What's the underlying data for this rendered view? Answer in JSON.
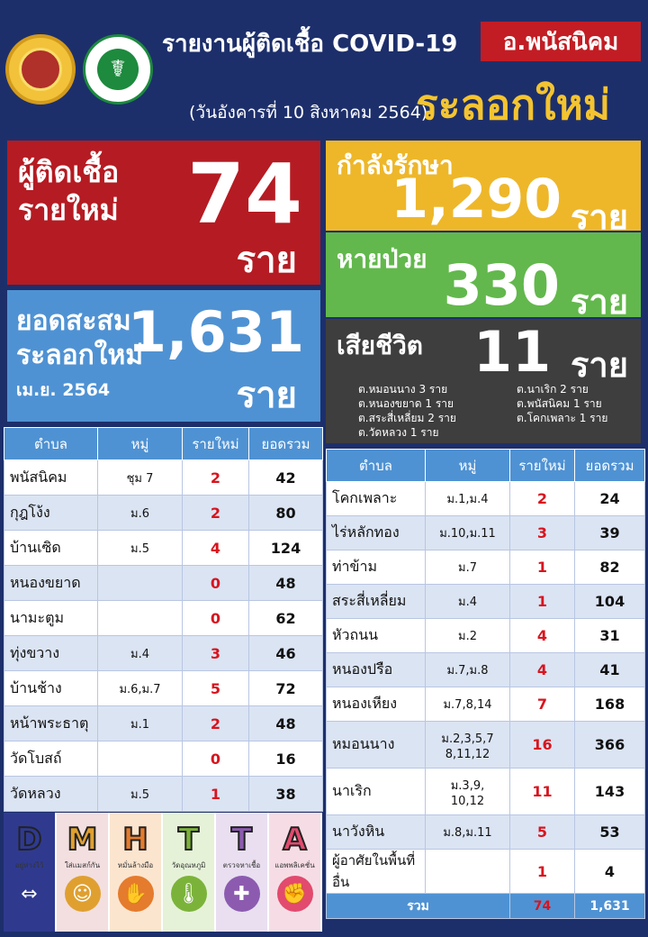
{
  "header": {
    "title": "รายงานผู้ติดเชื้อ COVID-19",
    "district": "อ.พนัสนิคม",
    "date": "(วันอังคารที่ 10 สิงหาคม 2564)",
    "place": "ระลอกใหม่"
  },
  "stats": {
    "new_label": "ผู้ติดเชื้อ รายใหม่",
    "new_value": "74",
    "new_unit": "ราย",
    "cum_label": "ยอดสะสม ระลอกใหม่",
    "cum_sub": "เม.ย. 2564",
    "cum_value": "1,631",
    "cum_unit": "ราย",
    "treat_label": "กำลังรักษา",
    "treat_value": "1,290",
    "treat_unit": "ราย",
    "recover_label": "หายป่วย",
    "recover_value": "330",
    "recover_unit": "ราย",
    "death_label": "เสียชีวิต",
    "death_value": "11",
    "death_unit": "ราย",
    "death_left": [
      "ต.หมอนนาง 3 ราย",
      "ต.หนองขยาด 1 ราย",
      "ต.สระสี่เหลี่ยม 2 ราย",
      "ต.วัดหลวง 1 ราย"
    ],
    "death_right": [
      "ต.นาเริก 2 ราย",
      "ต.พนัสนิคม 1 ราย",
      "ต.โคกเพลาะ 1 ราย"
    ]
  },
  "table_headers": [
    "ตำบล",
    "หมู่",
    "รายใหม่",
    "ยอดรวม"
  ],
  "table_left": [
    {
      "name": "พนัสนิคม",
      "moo": "ชุม 7",
      "new": "2",
      "total": "42"
    },
    {
      "name": "กุฎโง้ง",
      "moo": "ม.6",
      "new": "2",
      "total": "80"
    },
    {
      "name": "บ้านเซิด",
      "moo": "ม.5",
      "new": "4",
      "total": "124"
    },
    {
      "name": "หนองขยาด",
      "moo": "",
      "new": "0",
      "total": "48"
    },
    {
      "name": "นามะตูม",
      "moo": "",
      "new": "0",
      "total": "62"
    },
    {
      "name": "ทุ่งขวาง",
      "moo": "ม.4",
      "new": "3",
      "total": "46"
    },
    {
      "name": "บ้านช้าง",
      "moo": "ม.6,ม.7",
      "new": "5",
      "total": "72"
    },
    {
      "name": "หน้าพระธาตุ",
      "moo": "ม.1",
      "new": "2",
      "total": "48"
    },
    {
      "name": "วัดโบสถ์",
      "moo": "",
      "new": "0",
      "total": "16"
    },
    {
      "name": "วัดหลวง",
      "moo": "ม.5",
      "new": "1",
      "total": "38"
    }
  ],
  "table_right": [
    {
      "name": "โคกเพลาะ",
      "moo": "ม.1,ม.4",
      "new": "2",
      "total": "24"
    },
    {
      "name": "ไร่หลักทอง",
      "moo": "ม.10,ม.11",
      "new": "3",
      "total": "39"
    },
    {
      "name": "ท่าข้าม",
      "moo": "ม.7",
      "new": "1",
      "total": "82"
    },
    {
      "name": "สระสี่เหลี่ยม",
      "moo": "ม.4",
      "new": "1",
      "total": "104"
    },
    {
      "name": "หัวถนน",
      "moo": "ม.2",
      "new": "4",
      "total": "31"
    },
    {
      "name": "หนองปรือ",
      "moo": "ม.7,ม.8",
      "new": "4",
      "total": "41"
    },
    {
      "name": "หนองเหียง",
      "moo": "ม.7,8,14",
      "new": "7",
      "total": "168"
    },
    {
      "name": "หมอนนาง",
      "moo": "ม.2,3,5,7 8,11,12",
      "new": "16",
      "total": "366"
    },
    {
      "name": "นาเริก",
      "moo": "ม.3,9, 10,12",
      "new": "11",
      "total": "143"
    },
    {
      "name": "นาวังหิน",
      "moo": "ม.8,ม.11",
      "new": "5",
      "total": "53"
    },
    {
      "name": "ผู้อาศัยในพื้นที่อื่น",
      "moo": "",
      "new": "1",
      "total": "4"
    }
  ],
  "total_row": {
    "label": "รวม",
    "new": "74",
    "total": "1,631"
  },
  "dmhtta": [
    {
      "letter": "D",
      "caption": "อยู่ห่างไว้",
      "icon": "distance-icon",
      "bg": "#2f3a8f",
      "color": "#2f3a8f"
    },
    {
      "letter": "M",
      "caption": "ใส่แมสก์กัน",
      "icon": "mask-icon",
      "bg": "#f3dfe0",
      "color": "#e0a030"
    },
    {
      "letter": "H",
      "caption": "หมั่นล้างมือ",
      "icon": "handwash-icon",
      "bg": "#fbe5cf",
      "color": "#e57b2c"
    },
    {
      "letter": "T",
      "caption": "วัดอุณหภูมิ",
      "icon": "thermometer-icon",
      "bg": "#e6f2d8",
      "color": "#7bb33a"
    },
    {
      "letter": "T",
      "caption": "ตรวจหาเชื้อ",
      "icon": "test-icon",
      "bg": "#e9dff0",
      "color": "#8c5bb0"
    },
    {
      "letter": "A",
      "caption": "แอพพลิเคชั่น",
      "icon": "app-icon",
      "bg": "#f6dde5",
      "color": "#e24a6e"
    }
  ],
  "colors": {
    "navy": "#1d2f6b",
    "red": "#b51b22",
    "blue": "#4f92d3",
    "yellow": "#eeb72a",
    "green": "#62b84c",
    "dark": "#3e3e3e",
    "gold": "#f4c430"
  }
}
